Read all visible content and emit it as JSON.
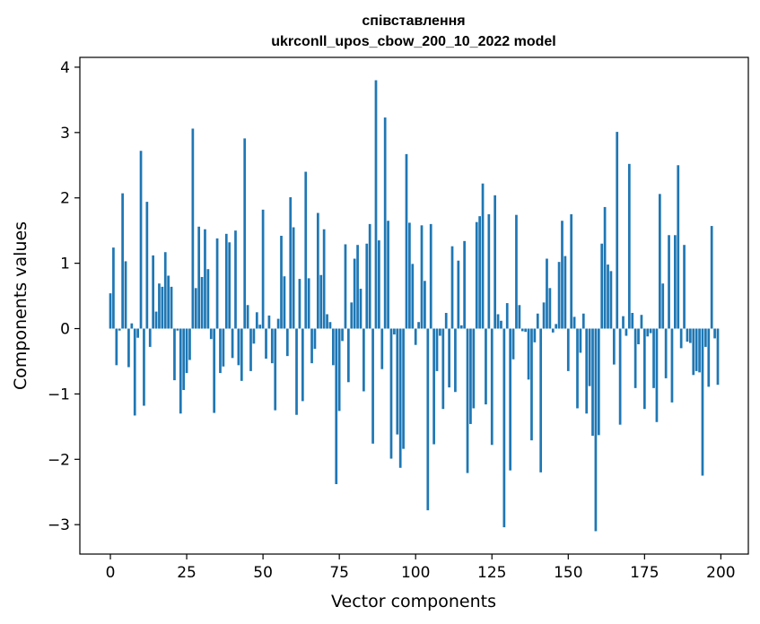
{
  "chart_data": {
    "type": "bar",
    "title_lines": [
      "співставлення",
      "ukrconll_upos_cbow_200_10_2022 model"
    ],
    "xlabel": "Vector components",
    "ylabel": "Components values",
    "xlim": [
      -10,
      209
    ],
    "ylim": [
      -3.45,
      4.15
    ],
    "x_ticks": [
      0,
      25,
      50,
      75,
      100,
      125,
      150,
      175,
      200
    ],
    "x_tick_labels": [
      "0",
      "25",
      "50",
      "75",
      "100",
      "125",
      "150",
      "175",
      "200"
    ],
    "y_ticks": [
      -3,
      -2,
      -1,
      0,
      1,
      2,
      3,
      4
    ],
    "y_tick_labels": [
      "−3",
      "−2",
      "−1",
      "0",
      "1",
      "2",
      "3",
      "4"
    ],
    "grid": false,
    "bar_color": "#1f77b4",
    "values": [
      0.54,
      1.24,
      -0.56,
      -0.03,
      2.07,
      1.03,
      -0.59,
      0.08,
      -1.33,
      -0.14,
      2.72,
      -1.18,
      1.94,
      -0.28,
      1.12,
      0.26,
      0.69,
      0.64,
      1.17,
      0.81,
      0.64,
      -0.79,
      -0.03,
      -1.3,
      -0.94,
      -0.68,
      -0.48,
      3.06,
      0.62,
      1.56,
      0.79,
      1.52,
      0.91,
      -0.16,
      -1.29,
      1.38,
      -0.68,
      -0.58,
      1.45,
      1.32,
      -0.45,
      1.5,
      -0.56,
      -0.8,
      2.91,
      0.36,
      -0.65,
      -0.23,
      0.25,
      0.06,
      1.82,
      -0.46,
      0.2,
      -0.53,
      -1.25,
      0.15,
      1.42,
      0.8,
      -0.42,
      2.01,
      1.55,
      -1.32,
      0.76,
      -1.11,
      2.4,
      0.77,
      -0.53,
      -0.31,
      1.77,
      0.82,
      1.52,
      0.22,
      0.1,
      -0.56,
      -2.38,
      -1.26,
      -0.19,
      1.29,
      -0.82,
      0.4,
      1.07,
      1.28,
      0.61,
      -0.96,
      1.3,
      1.6,
      -1.76,
      3.8,
      1.35,
      -0.62,
      3.23,
      1.65,
      -1.99,
      -0.09,
      -1.62,
      -2.13,
      -1.84,
      2.67,
      1.62,
      0.99,
      -0.25,
      0.1,
      1.58,
      0.73,
      -2.78,
      1.6,
      -1.77,
      -0.65,
      -0.11,
      -1.23,
      0.24,
      -0.9,
      1.26,
      -0.97,
      1.04,
      0.05,
      1.34,
      -2.21,
      -1.46,
      -1.22,
      1.63,
      1.72,
      2.22,
      -1.16,
      1.75,
      -1.78,
      2.04,
      0.22,
      0.12,
      -3.04,
      0.39,
      -2.17,
      -0.47,
      1.74,
      0.36,
      -0.04,
      -0.05,
      -0.78,
      -1.71,
      -0.21,
      0.23,
      -2.2,
      0.4,
      1.07,
      0.62,
      -0.06,
      0.07,
      1.02,
      1.65,
      1.11,
      -0.65,
      1.75,
      0.18,
      -1.22,
      -0.37,
      0.23,
      -1.3,
      -0.88,
      -1.64,
      -3.1,
      -1.63,
      1.3,
      1.86,
      0.98,
      0.88,
      -0.55,
      3.01,
      -1.47,
      0.19,
      -0.11,
      2.52,
      0.24,
      -0.91,
      -0.24,
      0.21,
      -1.23,
      -0.12,
      -0.07,
      -0.91,
      -1.43,
      2.06,
      0.69,
      -0.76,
      1.43,
      -1.13,
      1.43,
      2.5,
      -0.3,
      1.28,
      -0.2,
      -0.22,
      -0.71,
      -0.65,
      -0.67,
      -2.25,
      -0.28,
      -0.89,
      1.57,
      -0.15,
      -0.86
    ]
  }
}
